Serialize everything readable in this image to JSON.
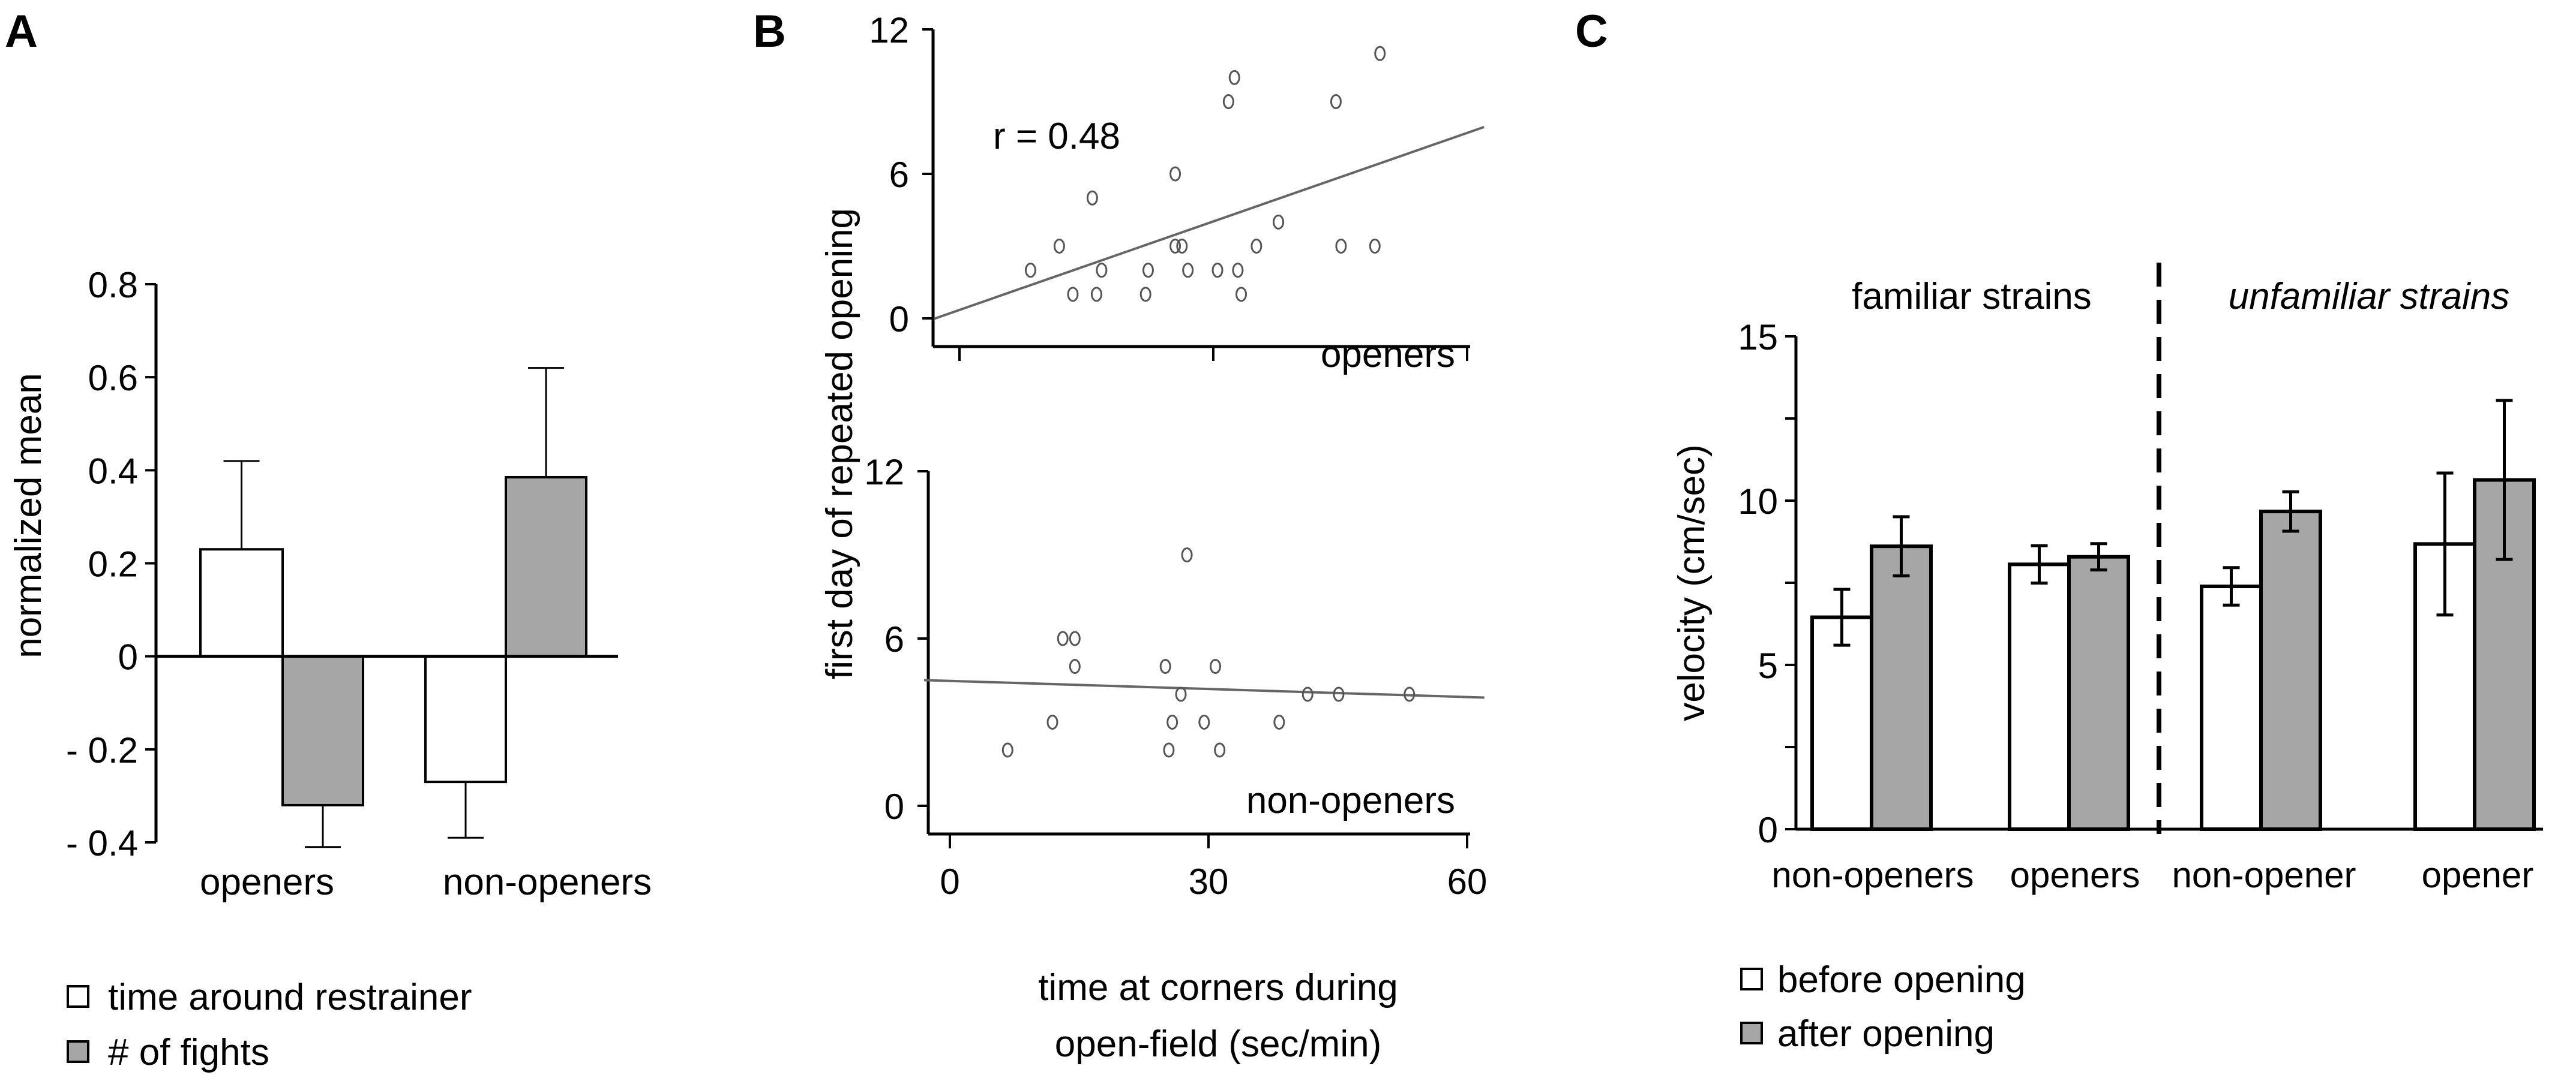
{
  "chart_data": [
    {
      "panel": "A",
      "type": "bar",
      "ylabel": "normalized mean",
      "ylim": [
        -0.4,
        0.8
      ],
      "yticks": [
        "0.8",
        "0.6",
        "0.4",
        "0.2",
        "0",
        "- 0.2",
        "- 0.4"
      ],
      "ytick_values": [
        0.8,
        0.6,
        0.4,
        0.2,
        0,
        -0.2,
        -0.4
      ],
      "categories": [
        "openers",
        "non-openers"
      ],
      "series": [
        {
          "name": "time around restrainer",
          "color": "#ffffff",
          "values": [
            0.23,
            -0.27
          ],
          "error_upper": [
            0.42,
            null
          ],
          "error_lower": [
            null,
            -0.39
          ]
        },
        {
          "name": "# of fights",
          "color": "#a6a6a6",
          "values": [
            -0.32,
            0.385
          ],
          "error_upper": [
            null,
            0.62
          ],
          "error_lower": [
            -0.41,
            null
          ]
        }
      ],
      "legend_position": "bottom-left"
    },
    {
      "panel": "B",
      "type": "scatter",
      "ylabel": "first day of repeated opening",
      "xlabel": [
        "time at corners during",
        "open-field (sec/min)"
      ],
      "xlim": [
        0,
        60
      ],
      "xticks": [
        "0",
        "30",
        "60"
      ],
      "subplots": [
        {
          "label": "openers",
          "annotation": "r = 0.48",
          "ylim": [
            0,
            12
          ],
          "yticks": [
            "12",
            "6",
            "0"
          ],
          "points": [
            [
              8.4,
              2
            ],
            [
              11.8,
              3
            ],
            [
              13.4,
              1
            ],
            [
              15.7,
              5
            ],
            [
              16.2,
              1
            ],
            [
              16.8,
              2
            ],
            [
              22.0,
              1
            ],
            [
              22.3,
              2
            ],
            [
              25.5,
              6
            ],
            [
              25.5,
              3
            ],
            [
              26.3,
              3
            ],
            [
              27.0,
              2
            ],
            [
              30.5,
              2
            ],
            [
              31.8,
              9
            ],
            [
              32.5,
              10
            ],
            [
              32.9,
              2
            ],
            [
              33.3,
              1
            ],
            [
              35.1,
              3
            ],
            [
              37.7,
              4
            ],
            [
              44.5,
              9
            ],
            [
              45.1,
              3
            ],
            [
              49.1,
              3
            ],
            [
              49.7,
              11
            ]
          ],
          "fit_line": [
            [
              0,
              0.35
            ],
            [
              60,
              7.7
            ]
          ]
        },
        {
          "label": "non-openers",
          "ylim": [
            0,
            12
          ],
          "yticks": [
            "12",
            "6",
            "0"
          ],
          "points": [
            [
              6.7,
              2
            ],
            [
              11.9,
              3
            ],
            [
              13.1,
              6
            ],
            [
              14.5,
              6
            ],
            [
              14.5,
              5
            ],
            [
              25.0,
              5
            ],
            [
              25.4,
              2
            ],
            [
              25.8,
              3
            ],
            [
              26.8,
              4
            ],
            [
              27.5,
              9
            ],
            [
              29.5,
              3
            ],
            [
              30.8,
              5
            ],
            [
              31.3,
              2
            ],
            [
              38.2,
              3
            ],
            [
              41.5,
              4
            ],
            [
              45.1,
              4
            ],
            [
              53.3,
              4
            ]
          ],
          "fit_line": [
            [
              0,
              4.48
            ],
            [
              60,
              3.9
            ]
          ]
        }
      ]
    },
    {
      "panel": "C",
      "type": "bar",
      "ylabel": "velocity (cm/sec)",
      "ylim": [
        0,
        15
      ],
      "yticks": [
        "15",
        "10",
        "5",
        "0"
      ],
      "group_labels": [
        "familiar strains",
        "unfamiliar strains"
      ],
      "categories": [
        "non-openers",
        "openers",
        "non-opener",
        "opener"
      ],
      "series": [
        {
          "name": "before opening",
          "color": "#ffffff",
          "values": [
            6.45,
            8.06,
            7.39,
            8.68
          ],
          "error": [
            0.85,
            0.57,
            0.57,
            2.16
          ]
        },
        {
          "name": "after opening",
          "color": "#a6a6a6",
          "values": [
            8.61,
            8.29,
            9.67,
            10.63
          ],
          "error": [
            0.9,
            0.4,
            0.6,
            2.42
          ]
        }
      ],
      "legend_position": "bottom-left"
    }
  ]
}
